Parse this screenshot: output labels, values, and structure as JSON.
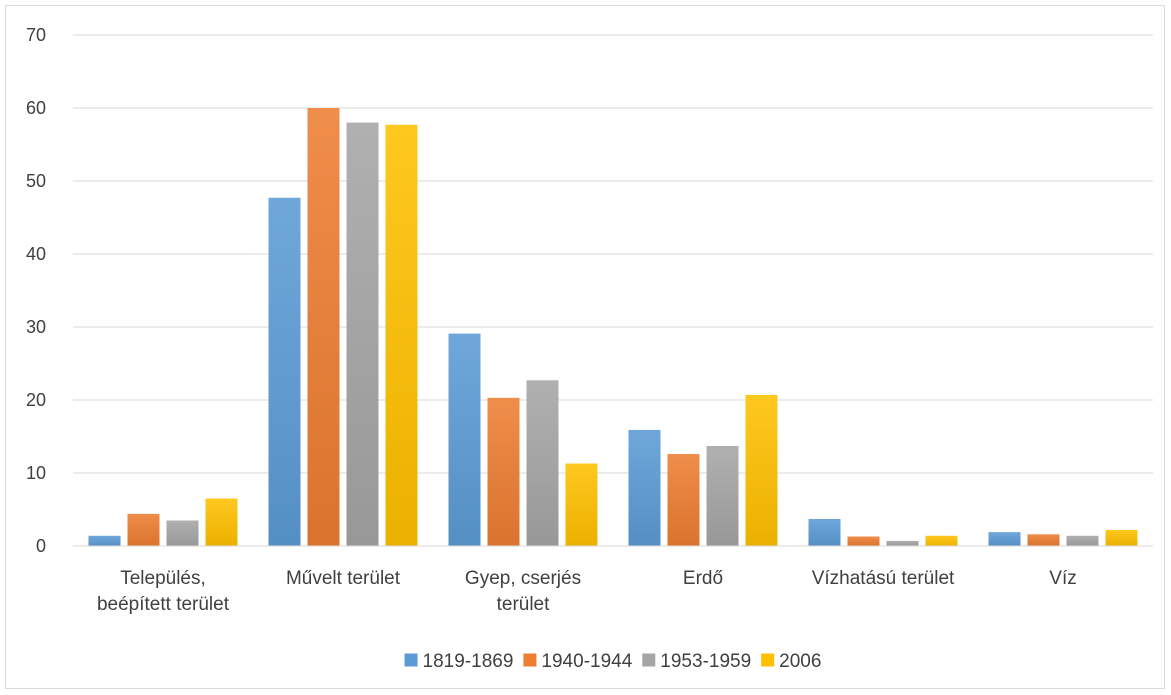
{
  "chart_data": {
    "type": "bar",
    "categories": [
      [
        "Település,",
        "beépített terület"
      ],
      [
        "Művelt terület"
      ],
      [
        "Gyep, cserjés",
        "terület"
      ],
      [
        "Erdő"
      ],
      [
        "Vízhatású terület"
      ],
      [
        "Víz"
      ]
    ],
    "series": [
      {
        "name": "1819-1869",
        "color": "#5b9bd5",
        "values": [
          1.4,
          47.7,
          29.1,
          15.9,
          3.7,
          1.9
        ]
      },
      {
        "name": "1940-1944",
        "color": "#ed7d31",
        "values": [
          4.4,
          60.0,
          20.3,
          12.6,
          1.3,
          1.6
        ]
      },
      {
        "name": "1953-1959",
        "color": "#a5a5a5",
        "values": [
          3.5,
          58.0,
          22.7,
          13.7,
          0.7,
          1.4
        ]
      },
      {
        "name": "2006",
        "color": "#ffc000",
        "values": [
          6.5,
          57.7,
          11.3,
          20.7,
          1.4,
          2.2
        ]
      }
    ],
    "ylim": [
      0,
      70
    ],
    "yticks": [
      0,
      10,
      20,
      30,
      40,
      50,
      60,
      70
    ],
    "grid": true,
    "legend": "bottom",
    "title": "",
    "xlabel": "",
    "ylabel": ""
  }
}
